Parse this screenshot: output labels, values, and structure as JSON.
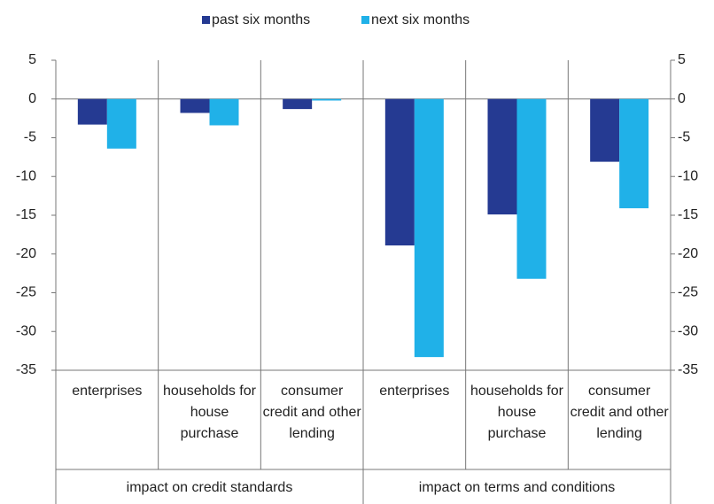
{
  "chart_data": {
    "type": "bar",
    "categories": [
      "enterprises",
      "households for house purchase",
      "consumer credit and other lending",
      "enterprises",
      "households for house purchase",
      "consumer credit and other lending"
    ],
    "category_groups": [
      "impact on credit standards",
      "impact on terms and conditions"
    ],
    "series": [
      {
        "name": "past six months",
        "color": "#253a92",
        "values": [
          -3.3,
          -1.8,
          -1.3,
          -18.9,
          -14.9,
          -8.1
        ]
      },
      {
        "name": "next six months",
        "color": "#20b1e8",
        "values": [
          -6.4,
          -3.4,
          -0.2,
          -33.3,
          -23.2,
          -14.1
        ]
      }
    ],
    "ylim": [
      -35,
      5
    ],
    "yticks": [
      5,
      0,
      -5,
      -10,
      -15,
      -20,
      -25,
      -30,
      -35
    ],
    "y2lim": [
      -35,
      5
    ],
    "y2ticks": [
      5,
      0,
      -5,
      -10,
      -15,
      -20,
      -25,
      -30,
      -35
    ],
    "legend": "top",
    "grid": false
  }
}
